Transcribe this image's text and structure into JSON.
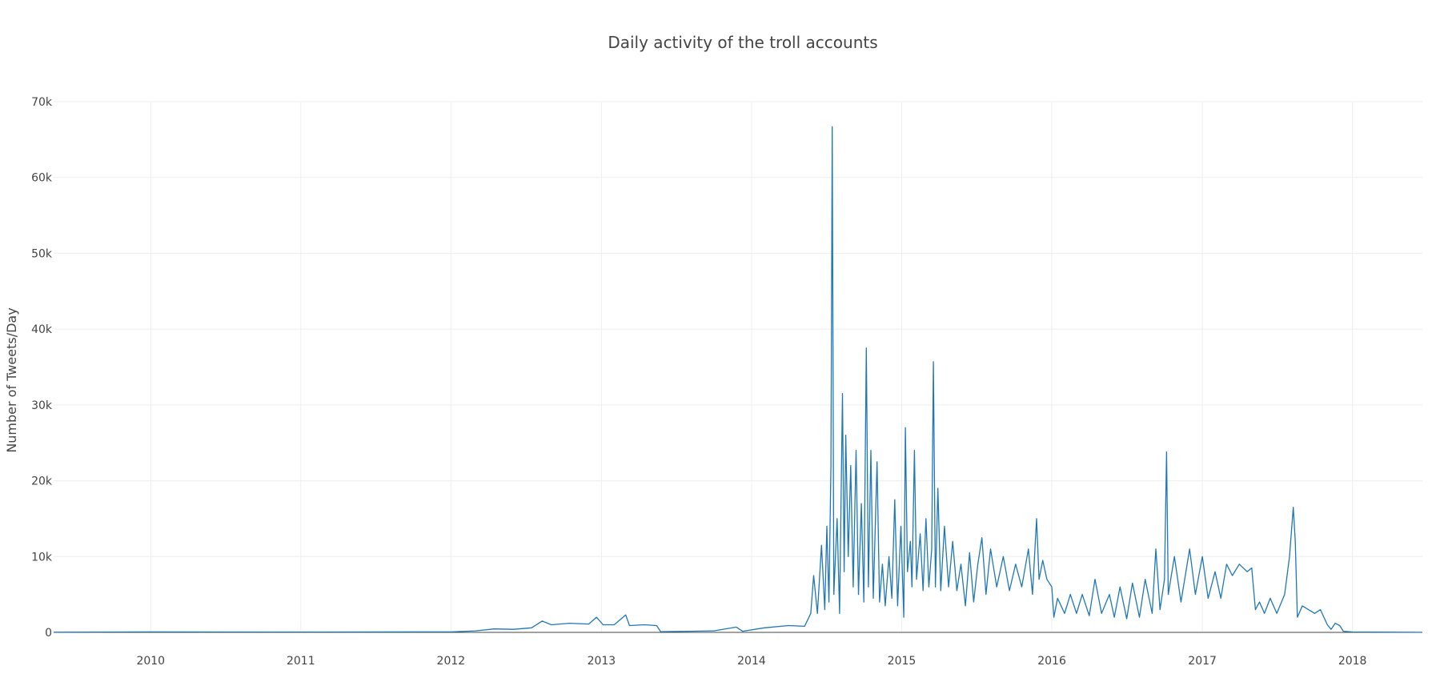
{
  "chart_data": {
    "type": "line",
    "title": "Daily activity of the troll accounts",
    "xlabel": "",
    "ylabel": "Number of Tweets/Day",
    "x_range": [
      "2009-05-10",
      "2018-06-20"
    ],
    "ylim": [
      0,
      70000
    ],
    "grid": true,
    "legend": "none",
    "x_ticks": [
      "2010",
      "2011",
      "2012",
      "2013",
      "2014",
      "2015",
      "2016",
      "2017",
      "2018"
    ],
    "y_ticks": [
      {
        "value": 0,
        "label": "0"
      },
      {
        "value": 10000,
        "label": "10k"
      },
      {
        "value": 20000,
        "label": "20k"
      },
      {
        "value": 30000,
        "label": "30k"
      },
      {
        "value": 40000,
        "label": "40k"
      },
      {
        "value": 50000,
        "label": "50k"
      },
      {
        "value": 60000,
        "label": "60k"
      },
      {
        "value": 70000,
        "label": "70k"
      }
    ],
    "series": [
      {
        "color": "#1f77b4",
        "points": [
          [
            "2009-05-10",
            20
          ],
          [
            "2010-01-01",
            60
          ],
          [
            "2011-01-01",
            40
          ],
          [
            "2012-01-01",
            60
          ],
          [
            "2012-03-01",
            200
          ],
          [
            "2012-04-15",
            450
          ],
          [
            "2012-06-01",
            400
          ],
          [
            "2012-07-15",
            600
          ],
          [
            "2012-08-10",
            1500
          ],
          [
            "2012-09-01",
            1000
          ],
          [
            "2012-10-15",
            1200
          ],
          [
            "2012-12-01",
            1100
          ],
          [
            "2012-12-20",
            2000
          ],
          [
            "2013-01-05",
            1000
          ],
          [
            "2013-02-01",
            1000
          ],
          [
            "2013-03-01",
            2300
          ],
          [
            "2013-03-10",
            900
          ],
          [
            "2013-04-15",
            1000
          ],
          [
            "2013-05-15",
            900
          ],
          [
            "2013-05-25",
            100
          ],
          [
            "2013-08-01",
            150
          ],
          [
            "2013-10-01",
            200
          ],
          [
            "2013-11-25",
            700
          ],
          [
            "2013-12-10",
            150
          ],
          [
            "2014-02-01",
            600
          ],
          [
            "2014-04-01",
            900
          ],
          [
            "2014-05-10",
            800
          ],
          [
            "2014-05-25",
            2500
          ],
          [
            "2014-06-01",
            7500
          ],
          [
            "2014-06-10",
            2500
          ],
          [
            "2014-06-20",
            11500
          ],
          [
            "2014-06-28",
            3000
          ],
          [
            "2014-07-03",
            14000
          ],
          [
            "2014-07-08",
            4000
          ],
          [
            "2014-07-13",
            22000
          ],
          [
            "2014-07-16",
            66700
          ],
          [
            "2014-07-20",
            5000
          ],
          [
            "2014-07-28",
            15000
          ],
          [
            "2014-08-03",
            2500
          ],
          [
            "2014-08-10",
            31500
          ],
          [
            "2014-08-14",
            8000
          ],
          [
            "2014-08-18",
            26000
          ],
          [
            "2014-08-24",
            10000
          ],
          [
            "2014-08-30",
            22000
          ],
          [
            "2014-09-05",
            6000
          ],
          [
            "2014-09-12",
            24000
          ],
          [
            "2014-09-18",
            5000
          ],
          [
            "2014-09-25",
            17000
          ],
          [
            "2014-10-01",
            4000
          ],
          [
            "2014-10-07",
            37500
          ],
          [
            "2014-10-12",
            6000
          ],
          [
            "2014-10-18",
            24000
          ],
          [
            "2014-10-24",
            4500
          ],
          [
            "2014-11-02",
            22500
          ],
          [
            "2014-11-08",
            4000
          ],
          [
            "2014-11-15",
            9000
          ],
          [
            "2014-11-22",
            3500
          ],
          [
            "2014-12-01",
            10000
          ],
          [
            "2014-12-08",
            4500
          ],
          [
            "2014-12-15",
            17500
          ],
          [
            "2014-12-22",
            3500
          ],
          [
            "2014-12-30",
            14000
          ],
          [
            "2015-01-06",
            2000
          ],
          [
            "2015-01-10",
            27000
          ],
          [
            "2015-01-15",
            8000
          ],
          [
            "2015-01-22",
            12000
          ],
          [
            "2015-01-26",
            6000
          ],
          [
            "2015-02-01",
            24000
          ],
          [
            "2015-02-06",
            7000
          ],
          [
            "2015-02-15",
            13000
          ],
          [
            "2015-02-22",
            5500
          ],
          [
            "2015-03-01",
            15000
          ],
          [
            "2015-03-08",
            6000
          ],
          [
            "2015-03-15",
            11000
          ],
          [
            "2015-03-19",
            35700
          ],
          [
            "2015-03-24",
            6000
          ],
          [
            "2015-03-30",
            19000
          ],
          [
            "2015-04-06",
            5500
          ],
          [
            "2015-04-15",
            14000
          ],
          [
            "2015-04-25",
            6000
          ],
          [
            "2015-05-05",
            12000
          ],
          [
            "2015-05-15",
            5500
          ],
          [
            "2015-05-25",
            9000
          ],
          [
            "2015-06-05",
            3500
          ],
          [
            "2015-06-15",
            10500
          ],
          [
            "2015-06-25",
            4000
          ],
          [
            "2015-07-05",
            9000
          ],
          [
            "2015-07-15",
            12500
          ],
          [
            "2015-07-25",
            5000
          ],
          [
            "2015-08-05",
            11000
          ],
          [
            "2015-08-20",
            6000
          ],
          [
            "2015-09-05",
            10000
          ],
          [
            "2015-09-20",
            5500
          ],
          [
            "2015-10-05",
            9000
          ],
          [
            "2015-10-20",
            6000
          ],
          [
            "2015-11-05",
            11000
          ],
          [
            "2015-11-15",
            5000
          ],
          [
            "2015-11-25",
            15000
          ],
          [
            "2015-12-01",
            7000
          ],
          [
            "2015-12-10",
            9500
          ],
          [
            "2015-12-20",
            7000
          ],
          [
            "2016-01-01",
            6000
          ],
          [
            "2016-01-06",
            2000
          ],
          [
            "2016-01-15",
            4500
          ],
          [
            "2016-02-01",
            2500
          ],
          [
            "2016-02-15",
            5000
          ],
          [
            "2016-03-01",
            2500
          ],
          [
            "2016-03-15",
            5000
          ],
          [
            "2016-04-01",
            2200
          ],
          [
            "2016-04-15",
            7000
          ],
          [
            "2016-05-01",
            2500
          ],
          [
            "2016-05-20",
            5000
          ],
          [
            "2016-06-01",
            2000
          ],
          [
            "2016-06-15",
            6000
          ],
          [
            "2016-07-01",
            1800
          ],
          [
            "2016-07-15",
            6500
          ],
          [
            "2016-08-01",
            2000
          ],
          [
            "2016-08-15",
            7000
          ],
          [
            "2016-09-01",
            2500
          ],
          [
            "2016-09-10",
            11000
          ],
          [
            "2016-09-20",
            3000
          ],
          [
            "2016-10-01",
            7000
          ],
          [
            "2016-10-06",
            23800
          ],
          [
            "2016-10-10",
            5000
          ],
          [
            "2016-10-25",
            10000
          ],
          [
            "2016-11-10",
            4000
          ],
          [
            "2016-12-01",
            11000
          ],
          [
            "2016-12-15",
            5000
          ],
          [
            "2017-01-01",
            10000
          ],
          [
            "2017-01-15",
            4500
          ],
          [
            "2017-02-01",
            8000
          ],
          [
            "2017-02-15",
            4500
          ],
          [
            "2017-03-01",
            9000
          ],
          [
            "2017-03-15",
            7500
          ],
          [
            "2017-04-01",
            9000
          ],
          [
            "2017-04-20",
            8000
          ],
          [
            "2017-05-01",
            8500
          ],
          [
            "2017-05-10",
            3000
          ],
          [
            "2017-05-20",
            4000
          ],
          [
            "2017-06-01",
            2500
          ],
          [
            "2017-06-15",
            4500
          ],
          [
            "2017-07-01",
            2500
          ],
          [
            "2017-07-20",
            5000
          ],
          [
            "2017-08-01",
            10000
          ],
          [
            "2017-08-10",
            16500
          ],
          [
            "2017-08-15",
            12000
          ],
          [
            "2017-08-20",
            2000
          ],
          [
            "2017-09-01",
            3500
          ],
          [
            "2017-10-01",
            2500
          ],
          [
            "2017-10-15",
            3000
          ],
          [
            "2017-11-01",
            1000
          ],
          [
            "2017-11-10",
            400
          ],
          [
            "2017-11-20",
            1200
          ],
          [
            "2017-12-01",
            900
          ],
          [
            "2017-12-10",
            150
          ],
          [
            "2018-01-01",
            50
          ],
          [
            "2018-03-01",
            30
          ],
          [
            "2018-06-20",
            10
          ]
        ]
      }
    ]
  }
}
